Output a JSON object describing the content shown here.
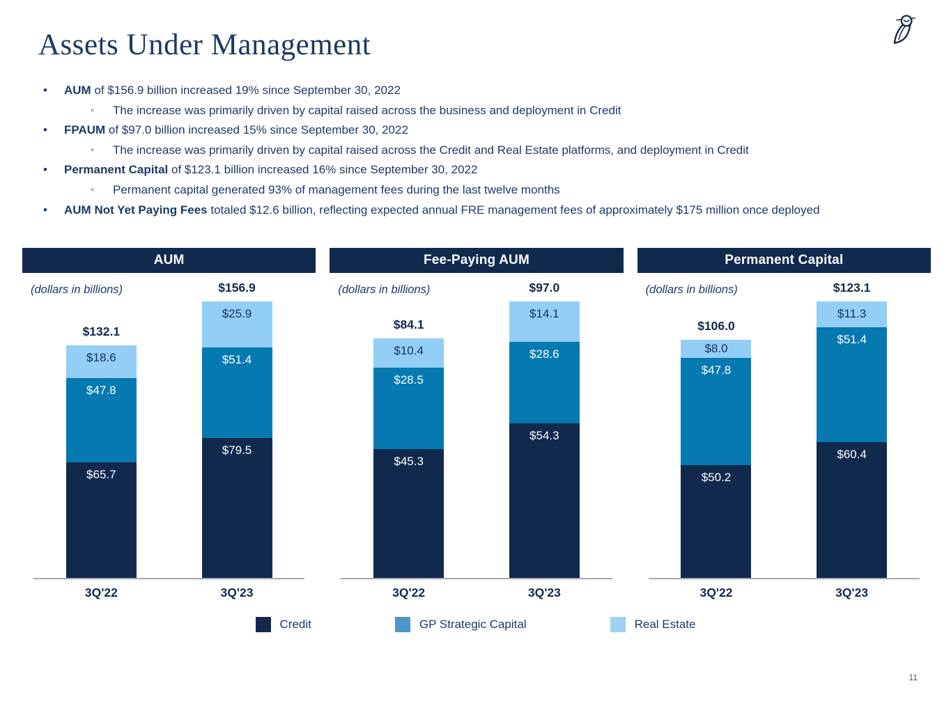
{
  "header": {
    "title": "Assets Under Management"
  },
  "logo_name": "blue-owl-owl-logo",
  "glyphs": {
    "bullet": "•",
    "sub_bullet": "◦"
  },
  "bullets": [
    {
      "lead": "AUM",
      "text": " of $156.9 billion increased 19% since September 30, 2022"
    },
    {
      "text": "The increase was primarily driven by capital raised across the business and deployment in Credit"
    },
    {
      "lead": "FPAUM",
      "text": " of $97.0 billion increased 15% since September 30, 2022"
    },
    {
      "text": "The increase was primarily driven by capital raised across the Credit and Real Estate platforms, and deployment in Credit"
    },
    {
      "lead": "Permanent Capital",
      "text": " of $123.1 billion increased 16% since September 30, 2022"
    },
    {
      "text": "Permanent capital generated 93% of management fees during the last twelve months"
    },
    {
      "lead": "AUM Not Yet Paying Fees",
      "text": " totaled $12.6 billion, reflecting expected annual FRE management fees of approximately $175 million once deployed"
    }
  ],
  "colors": {
    "navy": "#12294E",
    "text_navy": "#1F3864",
    "cerulean": "#0679B0",
    "light_blue": "#92CEF5",
    "legend_gp": "#4E96C8",
    "legend_light_blue": "#9CD2F5",
    "baseline": "#A8A8A8"
  },
  "chart_data": [
    {
      "type": "bar",
      "stacked": true,
      "title": "AUM",
      "note": "(dollars in billions)",
      "categories": [
        "3Q'22",
        "3Q'23"
      ],
      "totals": [
        132.1,
        156.9
      ],
      "total_labels": [
        "$132.1",
        "$156.9"
      ],
      "ylim": [
        0,
        156.9
      ],
      "grid": false,
      "series": [
        {
          "name": "Credit",
          "values": [
            65.7,
            79.5
          ],
          "labels": [
            "$65.7",
            "$79.5"
          ],
          "color": "#12294E",
          "label_color": "#FFFFFF"
        },
        {
          "name": "GP Strategic Capital",
          "values": [
            47.8,
            51.4
          ],
          "labels": [
            "$47.8",
            "$51.4"
          ],
          "color": "#0679B0",
          "label_color": "#FFFFFF"
        },
        {
          "name": "Real Estate",
          "values": [
            18.6,
            25.9
          ],
          "labels": [
            "$18.6",
            "$25.9"
          ],
          "color": "#92CEF5",
          "label_color": "#16305B"
        }
      ]
    },
    {
      "type": "bar",
      "stacked": true,
      "title": "Fee-Paying AUM",
      "note": "(dollars in billions)",
      "categories": [
        "3Q'22",
        "3Q'23"
      ],
      "totals": [
        84.1,
        97.0
      ],
      "total_labels": [
        "$84.1",
        "$97.0"
      ],
      "ylim": [
        0,
        97.0
      ],
      "grid": false,
      "series": [
        {
          "name": "Credit",
          "values": [
            45.3,
            54.3
          ],
          "labels": [
            "$45.3",
            "$54.3"
          ],
          "color": "#12294E",
          "label_color": "#FFFFFF"
        },
        {
          "name": "GP Strategic Capital",
          "values": [
            28.5,
            28.6
          ],
          "labels": [
            "$28.5",
            "$28.6"
          ],
          "color": "#0679B0",
          "label_color": "#FFFFFF"
        },
        {
          "name": "Real Estate",
          "values": [
            10.4,
            14.1
          ],
          "labels": [
            "$10.4",
            "$14.1"
          ],
          "color": "#92CEF5",
          "label_color": "#16305B"
        }
      ]
    },
    {
      "type": "bar",
      "stacked": true,
      "title": "Permanent Capital",
      "note": "(dollars in billions)",
      "categories": [
        "3Q'22",
        "3Q'23"
      ],
      "totals": [
        106.0,
        123.1
      ],
      "total_labels": [
        "$106.0",
        "$123.1"
      ],
      "ylim": [
        0,
        123.1
      ],
      "grid": false,
      "series": [
        {
          "name": "Credit",
          "values": [
            50.2,
            60.4
          ],
          "labels": [
            "$50.2",
            "$60.4"
          ],
          "color": "#12294E",
          "label_color": "#FFFFFF"
        },
        {
          "name": "GP Strategic Capital",
          "values": [
            47.8,
            51.4
          ],
          "labels": [
            "$47.8",
            "$51.4"
          ],
          "color": "#0679B0",
          "label_color": "#FFFFFF"
        },
        {
          "name": "Real Estate",
          "values": [
            8.0,
            11.3
          ],
          "labels": [
            "$8.0",
            "$11.3"
          ],
          "color": "#92CEF5",
          "label_color": "#16305B"
        }
      ]
    }
  ],
  "legend": {
    "items": [
      {
        "label": "Credit",
        "color": "#12294E"
      },
      {
        "label": "GP Strategic Capital",
        "color": "#4E96C8"
      },
      {
        "label": "Real Estate",
        "color": "#9CD2F5"
      }
    ]
  },
  "footer": {
    "page_number": "11"
  }
}
